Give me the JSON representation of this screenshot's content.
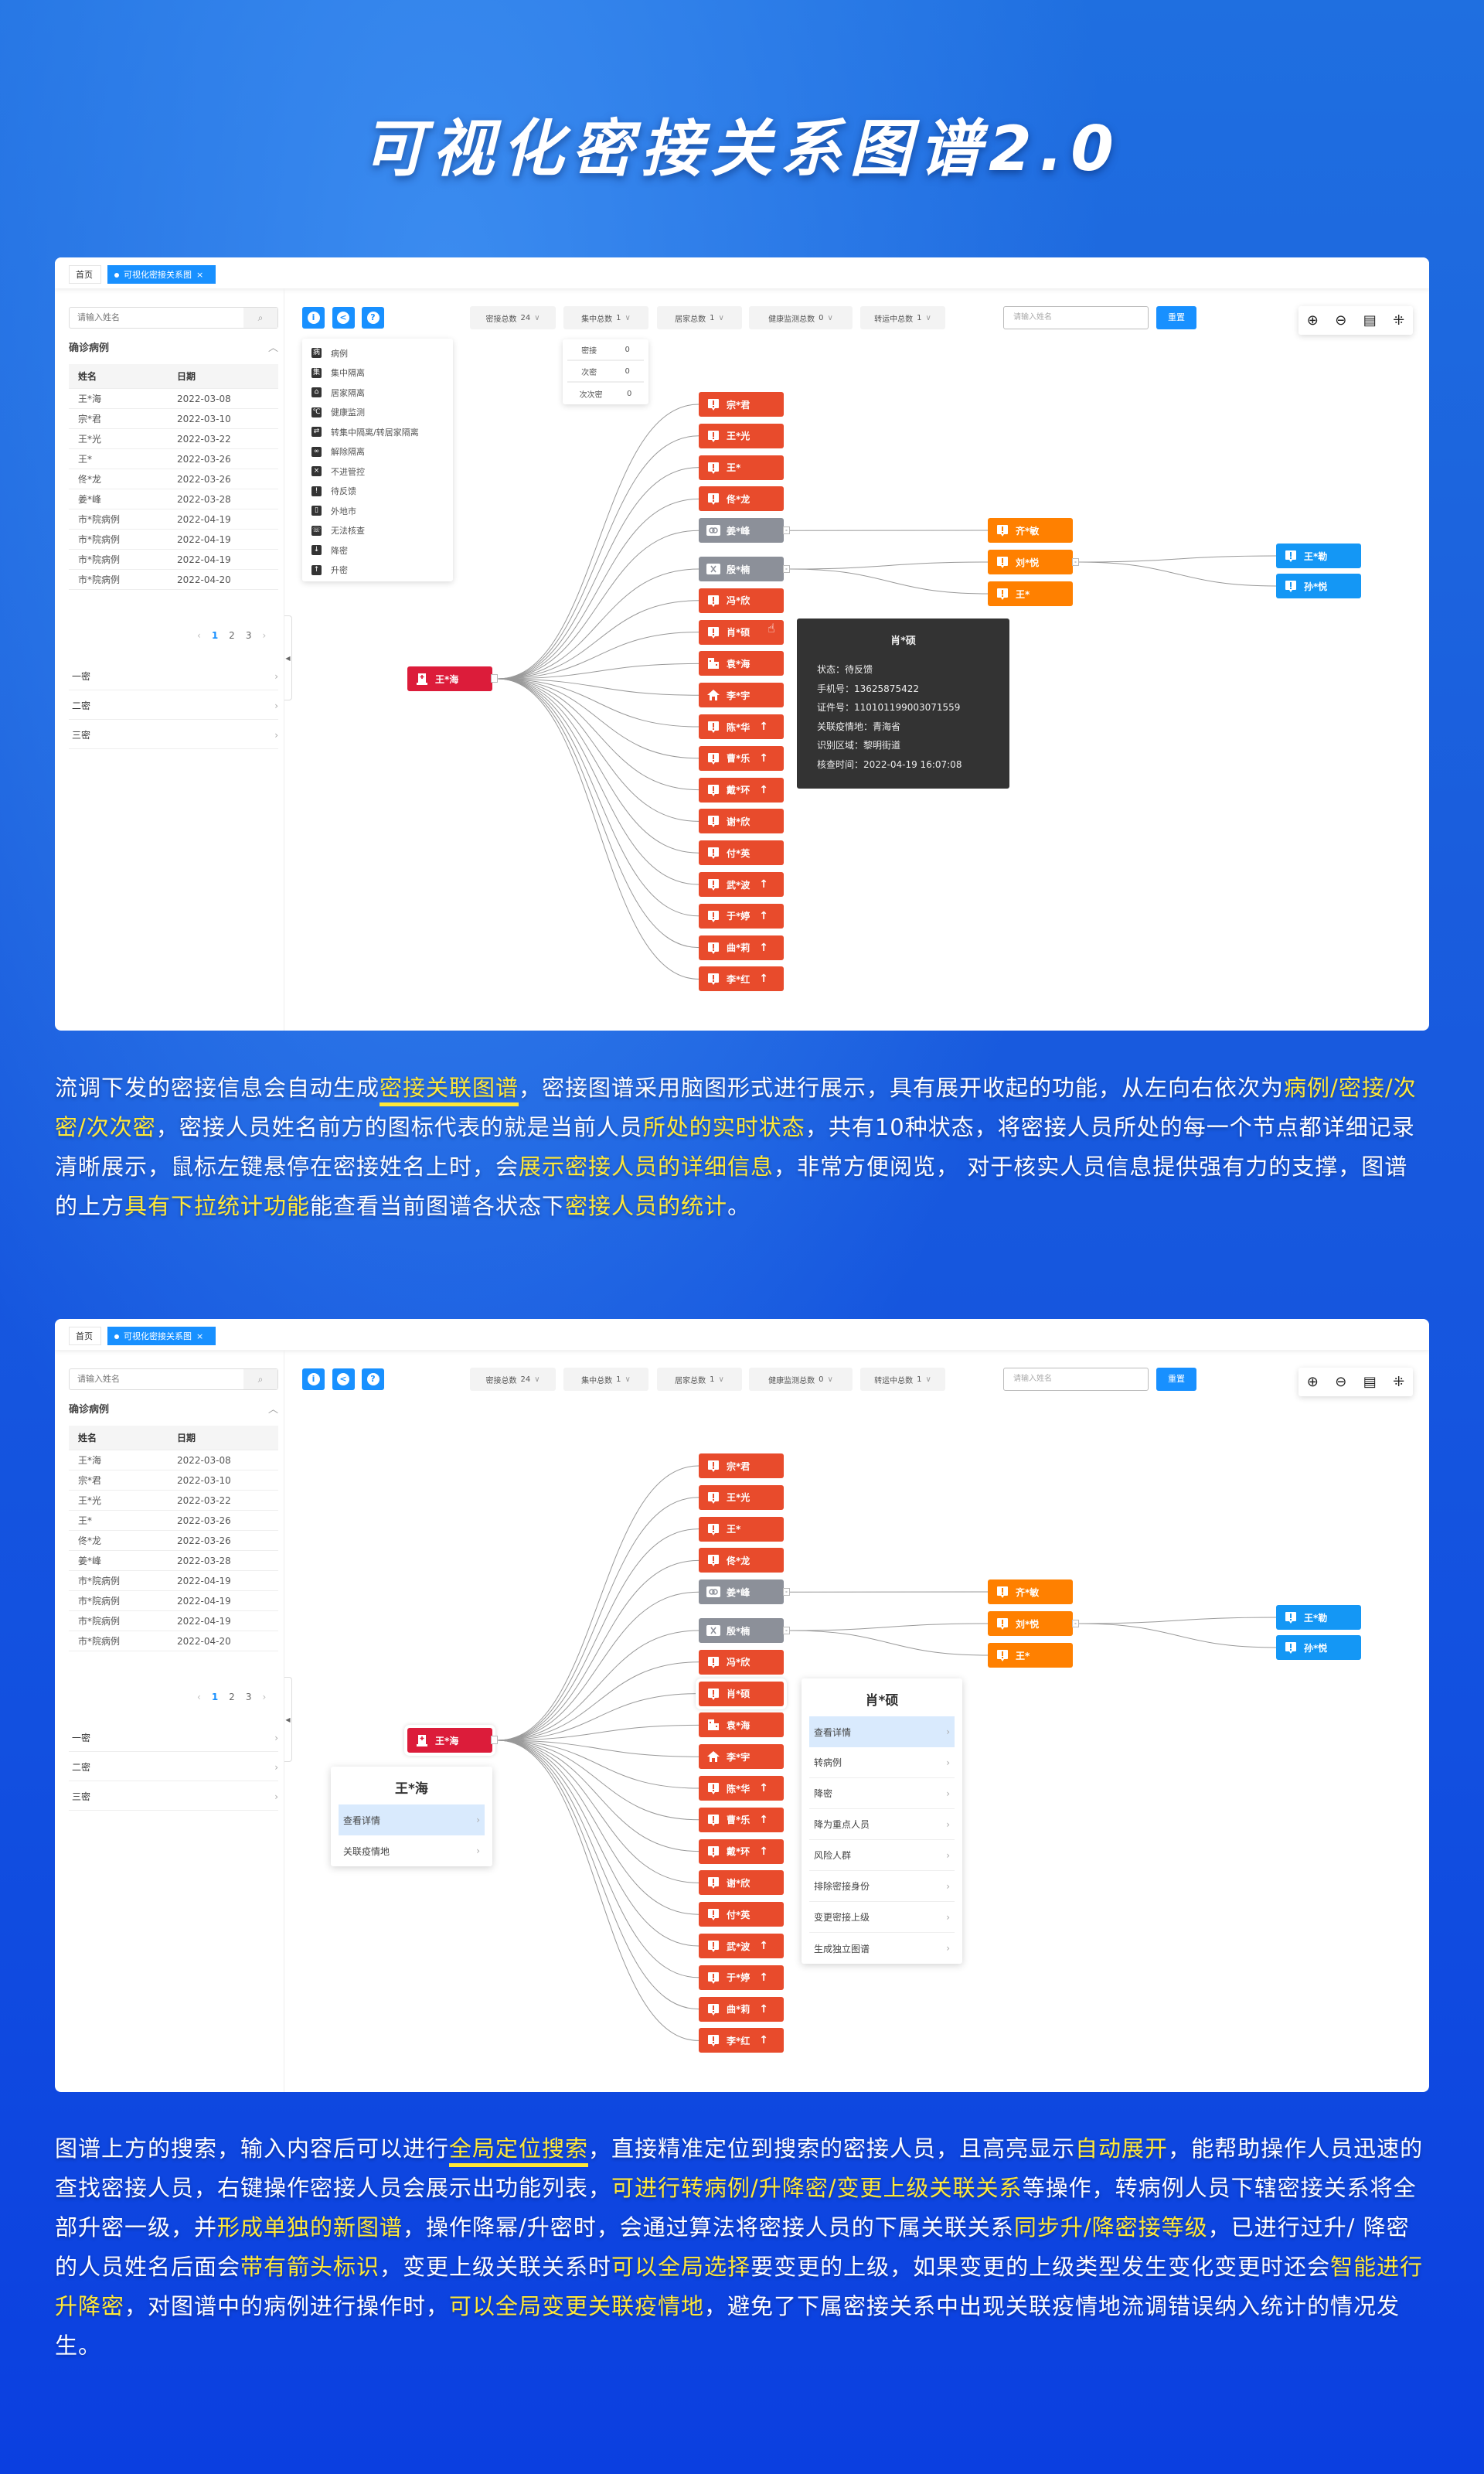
{
  "title": "可视化密接关系图谱2.0",
  "colors": {
    "root": "#dc1c3a",
    "pending": "#e84b2c",
    "released": "#8c9099",
    "secondary": "#ff8000",
    "tertiary": "#1497f5",
    "accent": "#1890ff",
    "highlight": "#ffe838"
  },
  "app": {
    "tabs": [
      {
        "label": "首页",
        "active": false
      },
      {
        "label": "可视化密接关系图",
        "active": true,
        "close": "×"
      }
    ],
    "sidebar": {
      "search_placeholder": "请输入姓名",
      "section": "确诊病例",
      "columns": [
        "姓名",
        "日期"
      ],
      "rows": [
        [
          "王*海",
          "2022-03-08"
        ],
        [
          "宗*君",
          "2022-03-10"
        ],
        [
          "王*光",
          "2022-03-22"
        ],
        [
          "王*",
          "2022-03-26"
        ],
        [
          "佟*龙",
          "2022-03-26"
        ],
        [
          "姜*峰",
          "2022-03-28"
        ],
        [
          "市*院病例",
          "2022-04-19"
        ],
        [
          "市*院病例",
          "2022-04-19"
        ],
        [
          "市*院病例",
          "2022-04-19"
        ],
        [
          "市*院病例",
          "2022-04-20"
        ]
      ],
      "pagination": {
        "prev": "‹",
        "pages": [
          "1",
          "2",
          "3"
        ],
        "current": "1",
        "next": "›"
      },
      "levels": [
        "一密",
        "二密",
        "三密"
      ]
    },
    "toolbar": {
      "buttons": [
        {
          "icon": "info-icon",
          "glyph": "i"
        },
        {
          "icon": "share-icon",
          "glyph": "<"
        },
        {
          "icon": "help-icon",
          "glyph": "?"
        }
      ]
    },
    "legend": [
      {
        "label": "病例",
        "glyph": "病"
      },
      {
        "label": "集中隔离",
        "glyph": "集"
      },
      {
        "label": "居家隔离",
        "glyph": "⌂"
      },
      {
        "label": "健康监测",
        "glyph": "℃"
      },
      {
        "label": "转集中隔离/转居家隔离",
        "glyph": "⇄"
      },
      {
        "label": "解除隔离",
        "glyph": "∞"
      },
      {
        "label": "不进管控",
        "glyph": "×"
      },
      {
        "label": "待反馈",
        "glyph": "!"
      },
      {
        "label": "外地市",
        "glyph": "▯"
      },
      {
        "label": "无法核查",
        "glyph": "☏"
      },
      {
        "label": "降密",
        "glyph": "↓"
      },
      {
        "label": "升密",
        "glyph": "↑"
      }
    ],
    "filters": [
      {
        "label": "密接总数",
        "value": "24"
      },
      {
        "label": "集中总数",
        "value": "1"
      },
      {
        "label": "居家总数",
        "value": "1"
      },
      {
        "label": "健康监测总数",
        "value": "0"
      },
      {
        "label": "转运中总数",
        "value": "1"
      }
    ],
    "stats_dropdown": [
      {
        "label": "密接",
        "value": "0"
      },
      {
        "label": "次密",
        "value": "0"
      },
      {
        "label": "次次密",
        "value": "0"
      }
    ],
    "graph_search_placeholder": "请输入姓名",
    "reset_label": "重置",
    "graph_tools": [
      {
        "icon": "zoom-in-icon",
        "glyph": "⊕"
      },
      {
        "icon": "zoom-out-icon",
        "glyph": "⊖"
      },
      {
        "icon": "export-icon",
        "glyph": "▤"
      },
      {
        "icon": "fit-icon",
        "glyph": "⁜"
      }
    ],
    "graph": {
      "root": {
        "name": "王*海",
        "status": "case"
      },
      "level1": [
        {
          "name": "宗*君",
          "status": "pending"
        },
        {
          "name": "王*光",
          "status": "pending"
        },
        {
          "name": "王*",
          "status": "pending"
        },
        {
          "name": "佟*龙",
          "status": "pending"
        },
        {
          "name": "姜*峰",
          "status": "released",
          "children": [
            {
              "name": "齐*敏",
              "status": "pending"
            }
          ]
        },
        {
          "name": "殷*楠",
          "status": "uncontrolled",
          "children": [
            {
              "name": "刘*悦",
              "status": "pending",
              "children": [
                {
                  "name": "王*勒",
                  "status": "pending"
                },
                {
                  "name": "孙*悦",
                  "status": "pending"
                }
              ]
            },
            {
              "name": "王*",
              "status": "pending"
            }
          ]
        },
        {
          "name": "冯*欣",
          "status": "pending"
        },
        {
          "name": "肖*硕",
          "status": "pending"
        },
        {
          "name": "袁*海",
          "status": "centralized"
        },
        {
          "name": "李*宇",
          "status": "home"
        },
        {
          "name": "陈*华",
          "status": "pending",
          "arrow": "↑"
        },
        {
          "name": "曹*乐",
          "status": "pending",
          "arrow": "↑"
        },
        {
          "name": "戴*环",
          "status": "pending",
          "arrow": "↑"
        },
        {
          "name": "谢*欣",
          "status": "pending"
        },
        {
          "name": "付*英",
          "status": "pending"
        },
        {
          "name": "武*波",
          "status": "pending",
          "arrow": "↑"
        },
        {
          "name": "于*婷",
          "status": "pending",
          "arrow": "↑"
        },
        {
          "name": "曲*莉",
          "status": "pending",
          "arrow": "↑"
        },
        {
          "name": "李*红",
          "status": "pending",
          "arrow": "↑"
        }
      ]
    },
    "tooltip": {
      "name": "肖*硕",
      "lines": [
        "状态：待反馈",
        "手机号：13625875422",
        "证件号：110101199003071559",
        "关联疫情地：青海省",
        "识别区域：黎明街道",
        "核查时间：2022-04-19 16:07:08"
      ]
    },
    "root_menu": {
      "name": "王*海",
      "items": [
        "查看详情",
        "关联疫情地"
      ],
      "active": 0
    },
    "node_menu": {
      "name": "肖*硕",
      "items": [
        "查看详情",
        "转病例",
        "降密",
        "降为重点人员",
        "风险人群",
        "排除密接身份",
        "变更密接上级",
        "生成独立图谱"
      ],
      "active": 0
    }
  },
  "paragraph1": [
    {
      "t": "流调下发的密接信息会自动生成"
    },
    {
      "t": "密接关联图谱",
      "hl": true,
      "ul": true
    },
    {
      "t": "，密接图谱采用脑图形式进行展示，具有展开收起的功能，从左向右依次为"
    },
    {
      "t": "病例/密接/次密/次次密",
      "hl": true
    },
    {
      "t": "，密接人员姓名前方的图标代表的就是当前人员"
    },
    {
      "t": "所处的实时状态",
      "hl": true
    },
    {
      "t": "，共有10种状态，将密接人员所处的每一个节点都详细记录清晰展示，鼠标左键悬停在密接姓名上时，会"
    },
    {
      "t": "展示密接人员的详细信息",
      "hl": true
    },
    {
      "t": "，非常方便阅览， 对于核实人员信息提供强有力的支撑，图谱的上方"
    },
    {
      "t": "具有下拉统计功能",
      "hl": true
    },
    {
      "t": "能查看当前图谱各状态下"
    },
    {
      "t": "密接人员的统计",
      "hl": true
    },
    {
      "t": "。"
    }
  ],
  "paragraph2": [
    {
      "t": "图谱上方的搜索，输入内容后可以进行"
    },
    {
      "t": "全局定位搜索",
      "hl": true,
      "ul": true
    },
    {
      "t": "，直接精准定位到搜索的密接人员，且高亮显示"
    },
    {
      "t": "自动展开",
      "hl": true
    },
    {
      "t": "，能帮助操作人员迅速的查找密接人员，右键操作密接人员会展示出功能列表，"
    },
    {
      "t": "可进行转病例/升降密/变更上级关联关系",
      "hl": true
    },
    {
      "t": "等操作，转病例人员下辖密接关系将全部升密一级，并"
    },
    {
      "t": "形成单独的新图谱",
      "hl": true
    },
    {
      "t": "，操作降幂/升密时，会通过算法将密接人员的下属关联关系"
    },
    {
      "t": "同步升/降密接等级",
      "hl": true
    },
    {
      "t": "，已进行过升/ 降密的人员姓名后面会"
    },
    {
      "t": "带有箭头标识",
      "hl": true
    },
    {
      "t": "，变更上级关联关系时"
    },
    {
      "t": "可以全局选择",
      "hl": true
    },
    {
      "t": "要变更的上级，如果变更的上级类型发生变化变更时还会"
    },
    {
      "t": "智能进行升降密",
      "hl": true
    },
    {
      "t": "，对图谱中的病例进行操作时，"
    },
    {
      "t": "可以全局变更关联疫情地",
      "hl": true
    },
    {
      "t": "，避免了下属密接关系中出现关联疫情地流调错误纳入统计的情况发生。"
    }
  ]
}
